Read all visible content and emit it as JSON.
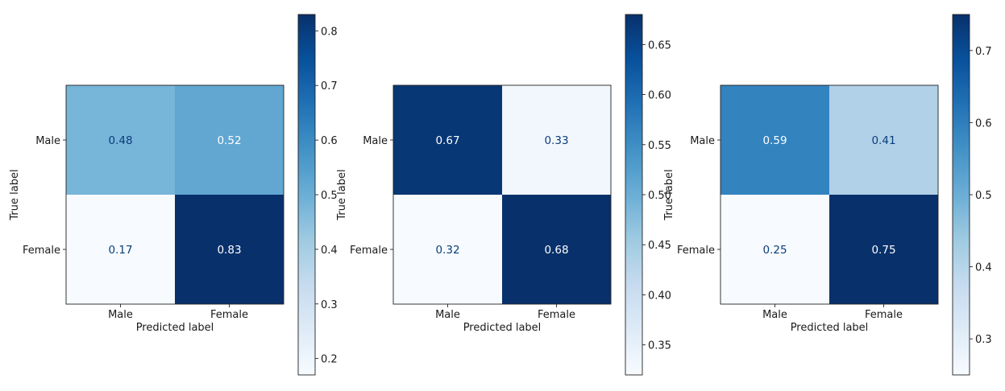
{
  "chart_data": [
    {
      "type": "heatmap",
      "title": "",
      "xlabel": "Predicted label",
      "ylabel": "True label",
      "x_categories": [
        "Male",
        "Female"
      ],
      "y_categories": [
        "Male",
        "Female"
      ],
      "values": [
        [
          0.48,
          0.52
        ],
        [
          0.17,
          0.83
        ]
      ],
      "value_labels": [
        "0.48",
        "0.52",
        "0.17",
        "0.83"
      ],
      "colormap": "Blues",
      "colorbar": {
        "range": [
          0.17,
          0.83
        ],
        "ticks": [
          0.2,
          0.3,
          0.4,
          0.5,
          0.6,
          0.7,
          0.8
        ],
        "tick_labels": [
          "0.2",
          "0.3",
          "0.4",
          "0.5",
          "0.6",
          "0.7",
          "0.8"
        ]
      }
    },
    {
      "type": "heatmap",
      "title": "",
      "xlabel": "Predicted label",
      "ylabel": "True label",
      "x_categories": [
        "Male",
        "Female"
      ],
      "y_categories": [
        "Male",
        "Female"
      ],
      "values": [
        [
          0.67,
          0.33
        ],
        [
          0.32,
          0.68
        ]
      ],
      "value_labels": [
        "0.67",
        "0.33",
        "0.32",
        "0.68"
      ],
      "colormap": "Blues",
      "colorbar": {
        "range": [
          0.32,
          0.68
        ],
        "ticks": [
          0.35,
          0.4,
          0.45,
          0.5,
          0.55,
          0.6,
          0.65
        ],
        "tick_labels": [
          "0.35",
          "0.40",
          "0.45",
          "0.50",
          "0.55",
          "0.60",
          "0.65"
        ]
      }
    },
    {
      "type": "heatmap",
      "title": "",
      "xlabel": "Predicted label",
      "ylabel": "True label",
      "x_categories": [
        "Male",
        "Female"
      ],
      "y_categories": [
        "Male",
        "Female"
      ],
      "values": [
        [
          0.59,
          0.41
        ],
        [
          0.25,
          0.75
        ]
      ],
      "value_labels": [
        "0.59",
        "0.41",
        "0.25",
        "0.75"
      ],
      "colormap": "Blues",
      "colorbar": {
        "range": [
          0.25,
          0.75
        ],
        "ticks": [
          0.3,
          0.4,
          0.5,
          0.6,
          0.7
        ],
        "tick_labels": [
          "0.3",
          "0.4",
          "0.5",
          "0.6",
          "0.7"
        ]
      }
    }
  ]
}
